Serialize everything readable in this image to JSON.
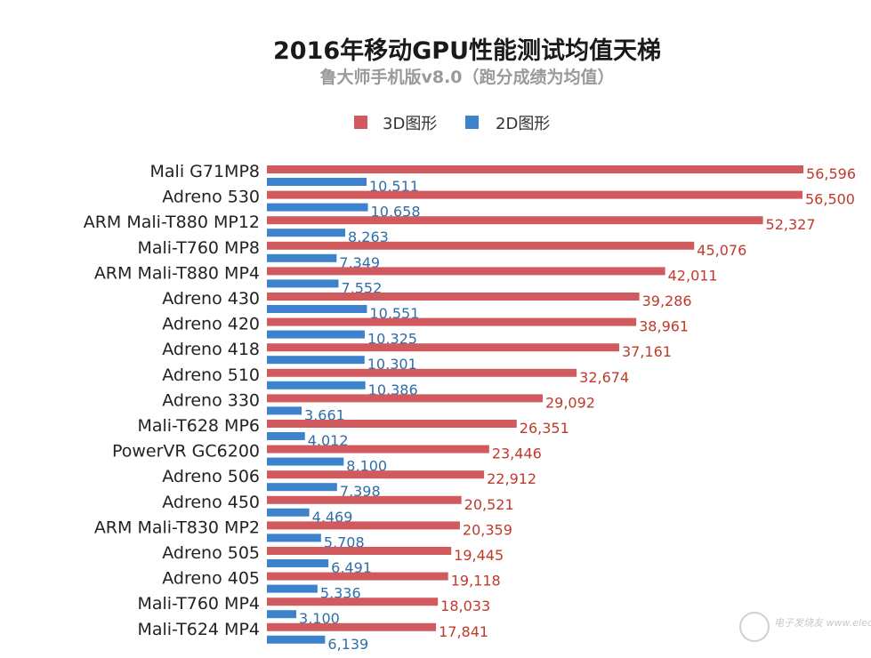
{
  "chart_data": {
    "type": "bar",
    "orientation": "horizontal",
    "title": "2016年移动GPU性能测试均值天梯",
    "subtitle": "鲁大师手机版v8.0（跑分成绩为均值）",
    "legend_position": "top",
    "grid": false,
    "xlim": [
      0,
      60000
    ],
    "categories": [
      "Mali G71MP8",
      "Adreno 530",
      "ARM Mali-T880 MP12",
      "Mali-T760 MP8",
      "ARM Mali-T880 MP4",
      "Adreno 430",
      "Adreno 420",
      "Adreno 418",
      "Adreno 510",
      "Adreno 330",
      "Mali-T628 MP6",
      "PowerVR GC6200",
      "Adreno 506",
      "Adreno 450",
      "ARM Mali-T830 MP2",
      "Adreno 505",
      "Adreno 405",
      "Mali-T760 MP4",
      "Mali-T624 MP4"
    ],
    "series": [
      {
        "name": "3D图形",
        "color": "#d05a5e",
        "label_color": "#c0392b",
        "values": [
          56596,
          56500,
          52327,
          45076,
          42011,
          39286,
          38961,
          37161,
          32674,
          29092,
          26351,
          23446,
          22912,
          20521,
          20359,
          19445,
          19118,
          18033,
          17841
        ],
        "labels": [
          "56,596",
          "56,500",
          "52,327",
          "45,076",
          "42,011",
          "39,286",
          "38,961",
          "37,161",
          "32,674",
          "29,092",
          "26,351",
          "23,446",
          "22,912",
          "20,521",
          "20,359",
          "19,445",
          "19,118",
          "18,033",
          "17,841"
        ]
      },
      {
        "name": "2D图形",
        "color": "#3d82cc",
        "label_color": "#2f6ea8",
        "values": [
          10511,
          10658,
          8263,
          7349,
          7552,
          10551,
          10325,
          10301,
          10386,
          3661,
          4012,
          8100,
          7398,
          4469,
          5708,
          6491,
          5336,
          3100,
          6139
        ],
        "labels": [
          "10,511",
          "10,658",
          "8,263",
          "7,349",
          "7,552",
          "10,551",
          "10,325",
          "10,301",
          "10,386",
          "3,661",
          "4,012",
          "8,100",
          "7,398",
          "4,469",
          "5,708",
          "6,491",
          "5,336",
          "3,100",
          "6,139"
        ]
      }
    ]
  },
  "watermark": "电子发烧友 www.elecfans.com"
}
